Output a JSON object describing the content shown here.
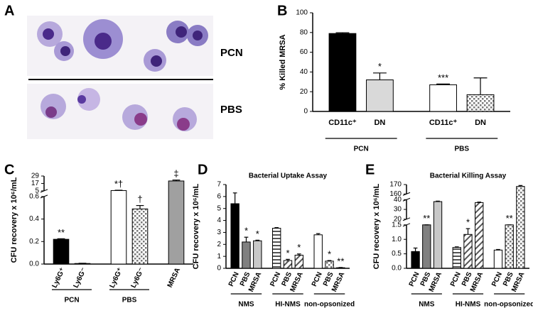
{
  "panel_a": {
    "letter": "A",
    "labels": [
      "PCN",
      "PBS"
    ]
  },
  "chart_data": [
    {
      "type": "bar",
      "letter": "B",
      "y_label": "% Killed MRSA",
      "rotated_categories": false,
      "axis_segments": [
        {
          "ylim": [
            0,
            100
          ],
          "yticks": [
            0,
            20,
            40,
            60,
            80,
            100
          ]
        }
      ],
      "groups": [
        {
          "label": "PCN",
          "categories": [
            "CD11c⁺",
            "DN"
          ],
          "values": [
            79,
            32
          ],
          "errors": [
            0.8,
            7
          ],
          "annotations": [
            null,
            "*"
          ],
          "fills": [
            "#000000",
            "#d9d9d9"
          ]
        },
        {
          "label": "PBS",
          "categories": [
            "CD11c⁺",
            "DN"
          ],
          "values": [
            27,
            17
          ],
          "errors": [
            0.8,
            17
          ],
          "annotations": [
            "***",
            null
          ],
          "fills": [
            "#ffffff",
            "dots"
          ]
        }
      ]
    },
    {
      "type": "bar",
      "letter": "C",
      "y_label": "CFU recovery x 10⁶/mL",
      "rotated_categories": true,
      "axis_segments": [
        {
          "ylim": [
            0,
            0.6
          ],
          "yticks": [
            {
              "value": 0,
              "label": "0.0"
            },
            0.2,
            0.4,
            0.6
          ]
        },
        {
          "ylim": [
            5,
            29
          ],
          "yticks": [
            5,
            17,
            29
          ]
        }
      ],
      "groups": [
        {
          "label": "PCN",
          "categories": [
            "Ly6G⁺",
            "Ly6G⁻"
          ],
          "values": [
            0.22,
            0.005
          ],
          "errors": [
            0.005,
            0.002
          ],
          "annotations": [
            "**",
            null
          ],
          "fills": [
            "#000000",
            "#000000"
          ]
        },
        {
          "label": "PBS",
          "categories": [
            "Ly6G⁺",
            "Ly6G⁻"
          ],
          "values": [
            5.5,
            0.49
          ],
          "errors": [
            0.5,
            0.03
          ],
          "annotations": [
            "*†",
            "†"
          ],
          "fills": [
            "#ffffff",
            "dots"
          ]
        },
        {
          "label": null,
          "categories": [
            "MRSA"
          ],
          "values": [
            21
          ],
          "errors": [
            1.5
          ],
          "annotations": [
            "‡"
          ],
          "fills": [
            "#a0a0a0"
          ]
        }
      ]
    },
    {
      "type": "bar",
      "letter": "D",
      "title": "Bacterial Uptake Assay",
      "y_label": "CFU recovery x 10⁶/mL",
      "rotated_categories": true,
      "axis_segments": [
        {
          "ylim": [
            0,
            7
          ],
          "yticks": [
            0,
            1,
            2,
            3,
            4,
            5,
            6,
            7
          ]
        }
      ],
      "groups": [
        {
          "label": "NMS",
          "categories": [
            "PCN",
            "PBS",
            "MRSA"
          ],
          "values": [
            5.4,
            2.2,
            2.3
          ],
          "errors": [
            0.9,
            0.4,
            0.05
          ],
          "annotations": [
            null,
            "*",
            "*"
          ],
          "fills": [
            "#000000",
            "#808080",
            "#c8c8c8"
          ]
        },
        {
          "label": "HI-NMS",
          "categories": [
            "PCN",
            "PBS",
            "MRSA"
          ],
          "values": [
            3.35,
            0.65,
            1.1
          ],
          "errors": [
            0.05,
            0.1,
            0.1
          ],
          "annotations": [
            null,
            "*",
            "*"
          ],
          "fills": [
            "hstripes",
            "dstripes",
            "dstripes"
          ]
        },
        {
          "label": "non-opsonized",
          "categories": [
            "PCN",
            "PBS",
            "MRSA"
          ],
          "values": [
            2.8,
            0.6,
            0.05
          ],
          "errors": [
            0.1,
            0.05,
            0.02
          ],
          "annotations": [
            null,
            "*",
            "**"
          ],
          "fills": [
            "#ffffff",
            "dots",
            "dots"
          ]
        }
      ]
    },
    {
      "type": "bar",
      "letter": "E",
      "title": "Bacterial Killing Assay",
      "y_label": "CFU recovery x 10⁶/mL",
      "rotated_categories": true,
      "axis_segments": [
        {
          "ylim": [
            0,
            1.5
          ],
          "yticks": [
            {
              "value": 0,
              "label": "0.0"
            },
            0.5,
            {
              "value": 1,
              "label": "1.0"
            },
            1.5
          ]
        },
        {
          "ylim": [
            20,
            40
          ],
          "yticks": [
            20,
            30,
            40
          ]
        },
        {
          "ylim": [
            160,
            170
          ],
          "yticks": [
            160,
            170
          ]
        }
      ],
      "groups": [
        {
          "label": "NMS",
          "categories": [
            "PCN",
            "PBS",
            "MRSA"
          ],
          "values": [
            0.58,
            1.6,
            38
          ],
          "errors": [
            0.12,
            0.05,
            0.5
          ],
          "annotations": [
            null,
            "**",
            null
          ],
          "fills": [
            "#000000",
            "#808080",
            "#c8c8c8"
          ]
        },
        {
          "label": "HI-NMS",
          "categories": [
            "PCN",
            "PBS",
            "MRSA"
          ],
          "values": [
            0.72,
            1.17,
            37
          ],
          "errors": [
            0.02,
            0.2,
            0.5
          ],
          "annotations": [
            null,
            "*",
            null
          ],
          "fills": [
            "hstripes",
            "dstripes",
            "dstripes"
          ]
        },
        {
          "label": "non-opsonized",
          "categories": [
            "PCN",
            "PBS",
            "MRSA"
          ],
          "values": [
            0.63,
            1.5,
            168
          ],
          "errors": [
            0.02,
            0.02,
            1
          ],
          "annotations": [
            null,
            "**",
            null
          ],
          "fills": [
            "#ffffff",
            "dots",
            "dots"
          ]
        }
      ]
    }
  ]
}
